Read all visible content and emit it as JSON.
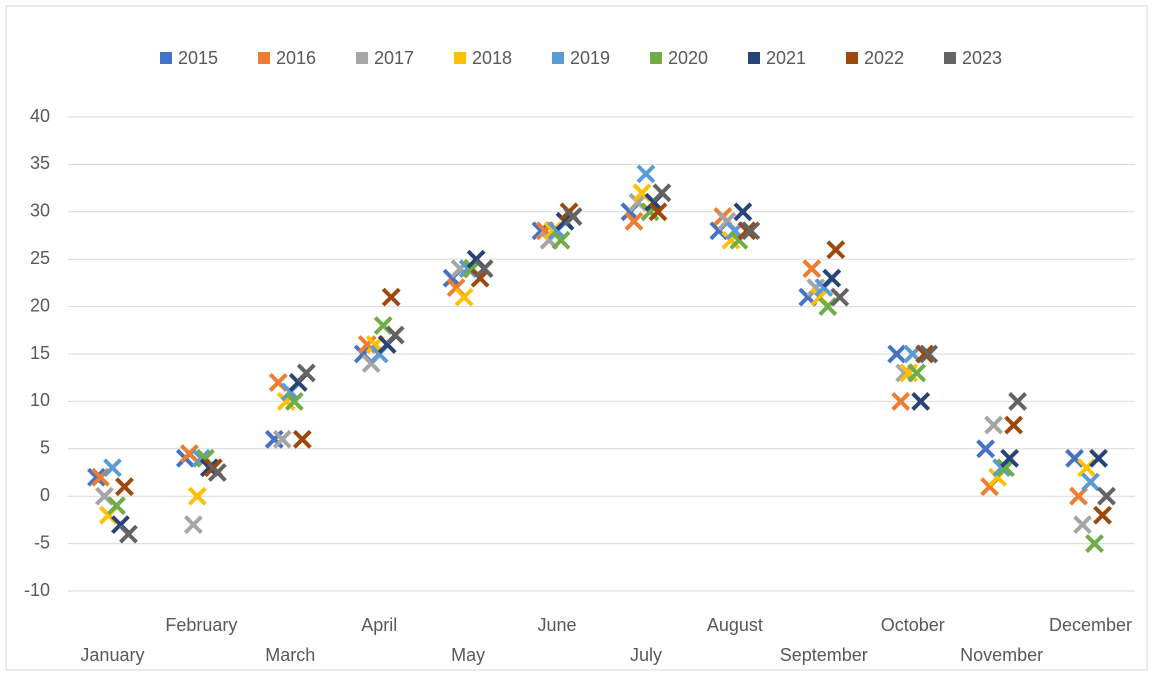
{
  "chart_data": {
    "type": "scatter",
    "categories": [
      "January",
      "February",
      "March",
      "April",
      "May",
      "June",
      "July",
      "August",
      "September",
      "October",
      "November",
      "December"
    ],
    "series": [
      {
        "name": "2015",
        "color": "#4472c4",
        "values": [
          2,
          4,
          6,
          15,
          23,
          28,
          30,
          28,
          21,
          15,
          5,
          4
        ]
      },
      {
        "name": "2016",
        "color": "#ed7d31",
        "values": [
          2,
          4.5,
          12,
          16,
          22,
          28,
          29,
          29.5,
          24,
          10,
          1,
          0
        ]
      },
      {
        "name": "2017",
        "color": "#a5a5a5",
        "values": [
          0,
          -3,
          6,
          14,
          24,
          27,
          31,
          29,
          22,
          13,
          7.5,
          -3
        ]
      },
      {
        "name": "2018",
        "color": "#ffc000",
        "values": [
          -2,
          0,
          10,
          16,
          21,
          28,
          32,
          27,
          21,
          13,
          2,
          3
        ]
      },
      {
        "name": "2019",
        "color": "#5b9bd5",
        "values": [
          3,
          4,
          11,
          15,
          24,
          28,
          34,
          28,
          22,
          15,
          3,
          1.5
        ]
      },
      {
        "name": "2020",
        "color": "#70ad47",
        "values": [
          -1,
          4,
          10,
          18,
          24,
          27,
          30,
          27,
          20,
          13,
          3,
          -5
        ]
      },
      {
        "name": "2021",
        "color": "#264478",
        "values": [
          -3,
          3,
          12,
          16,
          25,
          29,
          31,
          30,
          23,
          10,
          4,
          4
        ]
      },
      {
        "name": "2022",
        "color": "#9e480e",
        "values": [
          1,
          3,
          6,
          21,
          23,
          30,
          30,
          28,
          26,
          15,
          7.5,
          -2
        ]
      },
      {
        "name": "2023",
        "color": "#636363",
        "values": [
          -4,
          2.5,
          13,
          17,
          24,
          29.5,
          32,
          28,
          21,
          15,
          10,
          0
        ]
      }
    ],
    "ylim": [
      -10,
      40
    ],
    "yticks": [
      -10,
      -5,
      0,
      5,
      10,
      15,
      20,
      25,
      30,
      35,
      40
    ],
    "grid": true,
    "legend": "top"
  }
}
